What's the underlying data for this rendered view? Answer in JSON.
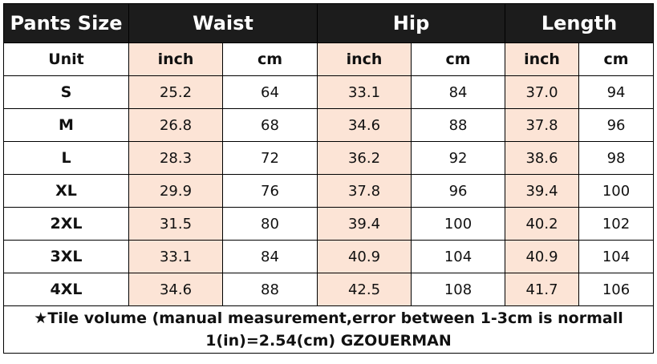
{
  "header": [
    "Pants Size",
    "Waist",
    "Hip",
    "Length"
  ],
  "units": [
    "Unit",
    "inch",
    "cm",
    "inch",
    "cm",
    "inch",
    "cm"
  ],
  "rows": [
    [
      "S",
      "25.2",
      "64",
      "33.1",
      "84",
      "37.0",
      "94"
    ],
    [
      "M",
      "26.8",
      "68",
      "34.6",
      "88",
      "37.8",
      "96"
    ],
    [
      "L",
      "28.3",
      "72",
      "36.2",
      "92",
      "38.6",
      "98"
    ],
    [
      "XL",
      "29.9",
      "76",
      "37.8",
      "96",
      "39.4",
      "100"
    ],
    [
      "2XL",
      "31.5",
      "80",
      "39.4",
      "100",
      "40.2",
      "102"
    ],
    [
      "3XL",
      "33.1",
      "84",
      "40.9",
      "104",
      "40.9",
      "104"
    ],
    [
      "4XL",
      "34.6",
      "88",
      "42.5",
      "108",
      "41.7",
      "106"
    ]
  ],
  "footer": [
    "★Tile volume (manual measurement,error between 1-3cm is normall",
    "1(in)=2.54(cm) GZOUERMAN"
  ]
}
